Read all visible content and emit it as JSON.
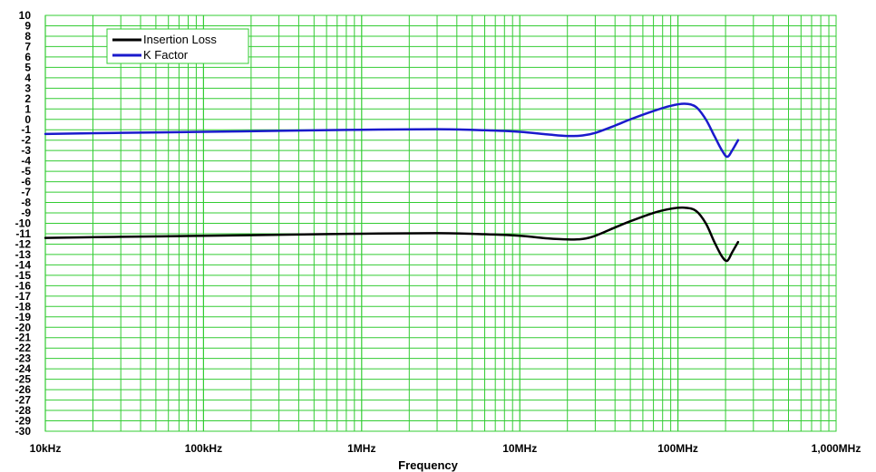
{
  "chart_data": {
    "type": "line",
    "title": "",
    "xlabel": "Frequency",
    "ylabel": "",
    "x_scale": "log",
    "xlim": [
      "10kHz",
      "1,000MHz"
    ],
    "x_ticks": [
      {
        "hz": 10000,
        "label": "10kHz"
      },
      {
        "hz": 100000,
        "label": "100kHz"
      },
      {
        "hz": 1000000,
        "label": "1MHz"
      },
      {
        "hz": 10000000,
        "label": "10MHz"
      },
      {
        "hz": 100000000,
        "label": "100MHz"
      },
      {
        "hz": 1000000000,
        "label": "1,000MHz"
      }
    ],
    "ylim": [
      -30,
      10
    ],
    "y_ticks": [
      10,
      9,
      8,
      7,
      6,
      5,
      4,
      3,
      2,
      1,
      0,
      -1,
      -2,
      -3,
      -4,
      -5,
      -6,
      -7,
      -8,
      -9,
      -10,
      -11,
      -12,
      -13,
      -14,
      -15,
      -16,
      -17,
      -18,
      -19,
      -20,
      -21,
      -22,
      -23,
      -24,
      -25,
      -26,
      -27,
      -28,
      -29,
      -30
    ],
    "grid": true,
    "grid_color": "#33cc33",
    "legend_position": "top-left",
    "series": [
      {
        "name": "Insertion Loss",
        "color": "#000000",
        "points": [
          [
            10000,
            -11.4
          ],
          [
            30000,
            -11.3
          ],
          [
            100000,
            -11.2
          ],
          [
            300000,
            -11.1
          ],
          [
            1000000,
            -11.0
          ],
          [
            3000000,
            -10.95
          ],
          [
            6000000,
            -11.05
          ],
          [
            10000000,
            -11.2
          ],
          [
            15000000,
            -11.45
          ],
          [
            20000000,
            -11.55
          ],
          [
            25000000,
            -11.5
          ],
          [
            30000000,
            -11.2
          ],
          [
            40000000,
            -10.4
          ],
          [
            50000000,
            -9.8
          ],
          [
            70000000,
            -9.0
          ],
          [
            90000000,
            -8.6
          ],
          [
            110000000,
            -8.5
          ],
          [
            130000000,
            -8.8
          ],
          [
            150000000,
            -10.0
          ],
          [
            170000000,
            -11.8
          ],
          [
            190000000,
            -13.2
          ],
          [
            205000000,
            -13.6
          ],
          [
            220000000,
            -12.8
          ],
          [
            240000000,
            -11.8
          ]
        ]
      },
      {
        "name": "K Factor",
        "color": "#1a1acc",
        "points": [
          [
            10000,
            -1.4
          ],
          [
            30000,
            -1.3
          ],
          [
            100000,
            -1.2
          ],
          [
            300000,
            -1.1
          ],
          [
            1000000,
            -1.0
          ],
          [
            3000000,
            -0.95
          ],
          [
            6000000,
            -1.05
          ],
          [
            10000000,
            -1.2
          ],
          [
            15000000,
            -1.45
          ],
          [
            20000000,
            -1.6
          ],
          [
            25000000,
            -1.55
          ],
          [
            30000000,
            -1.3
          ],
          [
            40000000,
            -0.6
          ],
          [
            50000000,
            0.0
          ],
          [
            70000000,
            0.8
          ],
          [
            90000000,
            1.3
          ],
          [
            110000000,
            1.5
          ],
          [
            130000000,
            1.2
          ],
          [
            150000000,
            0.0
          ],
          [
            170000000,
            -1.6
          ],
          [
            190000000,
            -3.0
          ],
          [
            205000000,
            -3.6
          ],
          [
            220000000,
            -3.0
          ],
          [
            240000000,
            -2.0
          ]
        ]
      }
    ]
  }
}
